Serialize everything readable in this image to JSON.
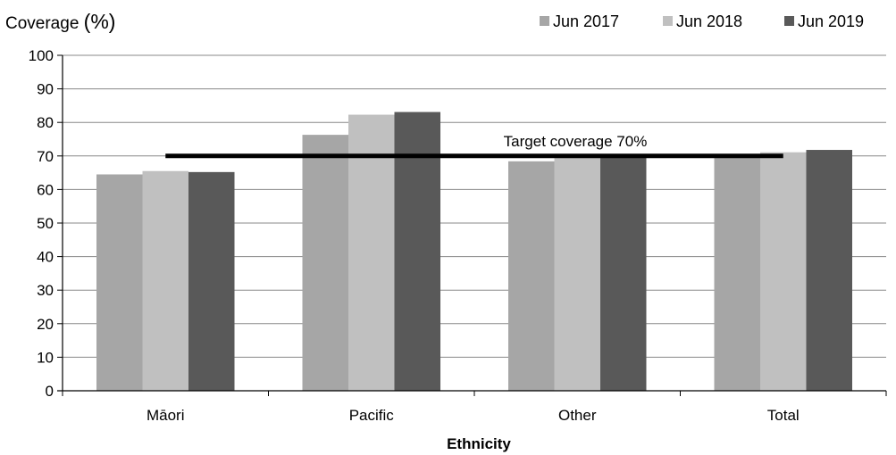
{
  "chart_data": {
    "type": "bar",
    "title": "",
    "ylabel": "Coverage",
    "ylabel_unit": "(%)",
    "xlabel": "Ethnicity",
    "ylim": [
      0,
      100
    ],
    "yticks": [
      "0",
      "10",
      "20",
      "30",
      "40",
      "50",
      "60",
      "70",
      "80",
      "90",
      "100"
    ],
    "categories": [
      "Māori",
      "Pacific",
      "Other",
      "Total"
    ],
    "series": [
      {
        "name": "Jun 2017",
        "color": "#a6a6a6",
        "values": [
          64.5,
          76.3,
          68.4,
          70.0
        ]
      },
      {
        "name": "Jun 2018",
        "color": "#c0c0c0",
        "values": [
          65.5,
          82.3,
          70.0,
          71.1
        ]
      },
      {
        "name": "Jun 2019",
        "color": "#595959",
        "values": [
          65.2,
          83.1,
          70.0,
          71.8
        ]
      }
    ],
    "grid": true,
    "legend_position": "top-right",
    "target": {
      "value": 70,
      "label": "Target coverage 70%",
      "color": "#000000"
    }
  }
}
